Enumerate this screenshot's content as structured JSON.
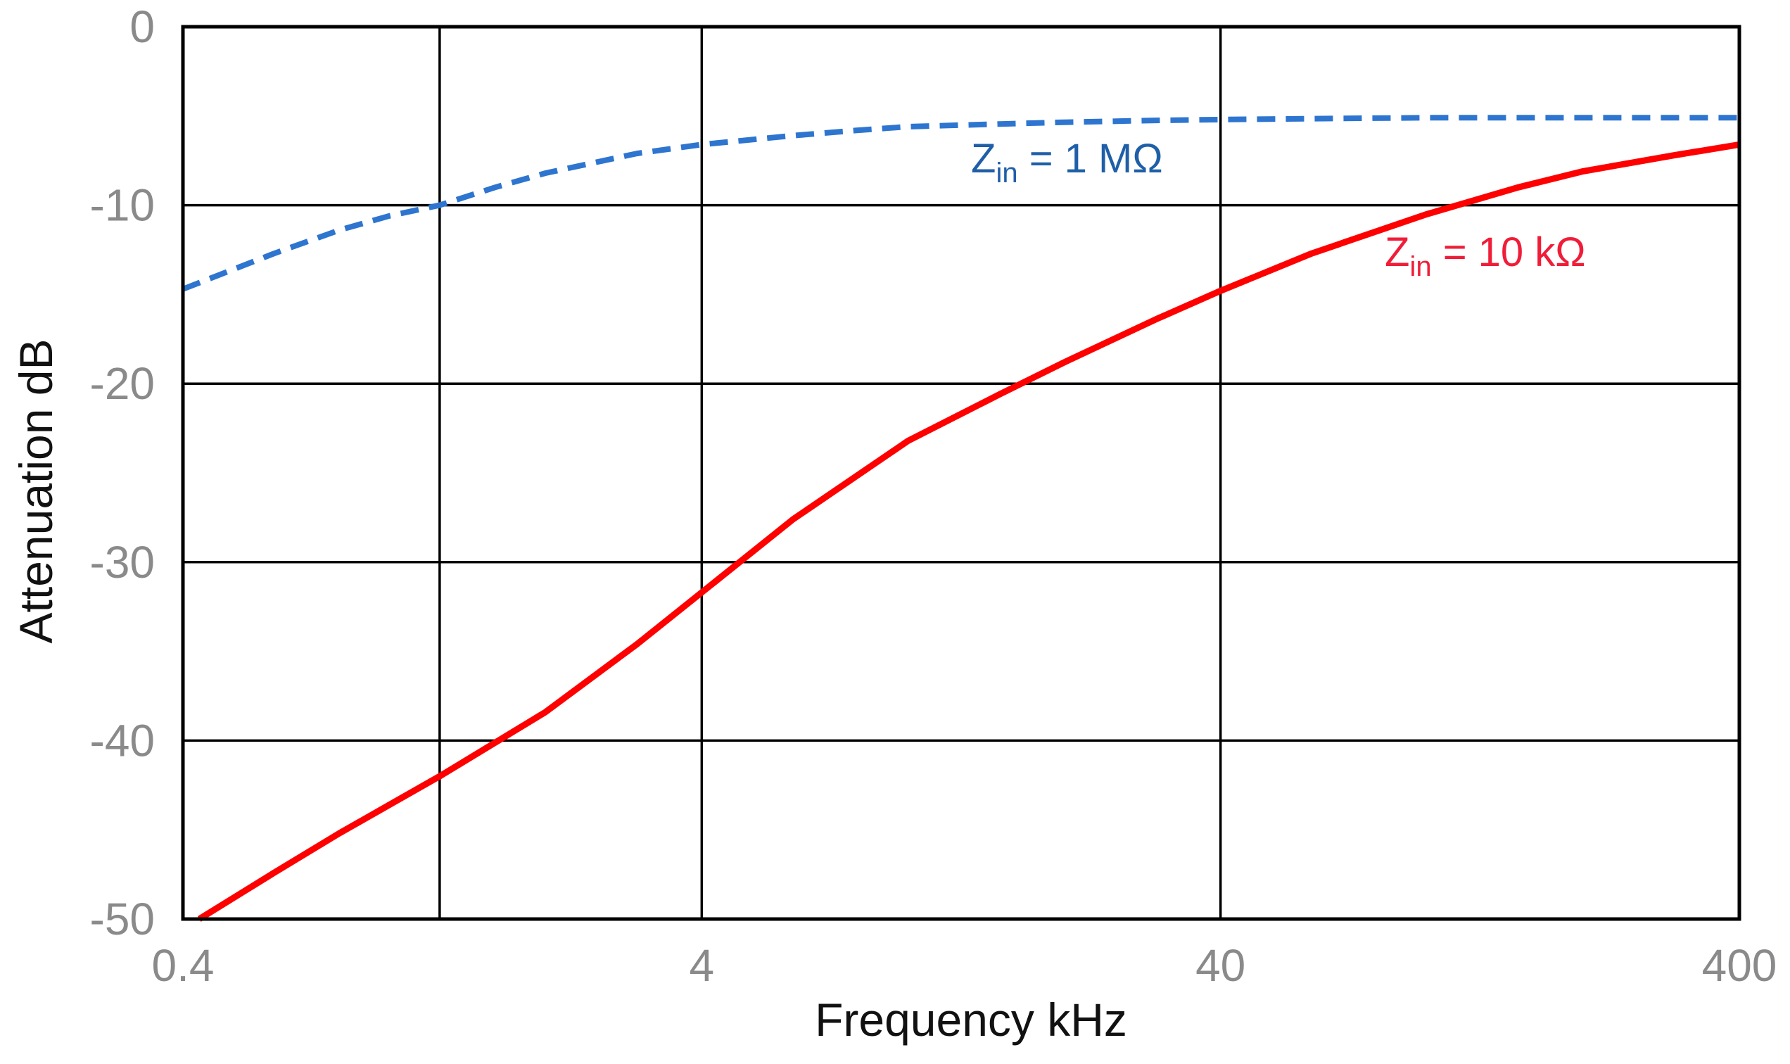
{
  "chart_data": {
    "type": "line",
    "title": "",
    "xlabel": "Frequency  kHz",
    "ylabel": "Attenuation  dB",
    "xscale": "log",
    "xlim": [
      0.4,
      400
    ],
    "ylim": [
      -50,
      0
    ],
    "x_ticks": [
      0.4,
      4,
      40,
      400
    ],
    "x_tick_labels": [
      "0.4",
      "4",
      "40",
      "400"
    ],
    "x_minor_gridlines": [
      1.25
    ],
    "y_ticks": [
      0,
      -10,
      -20,
      -30,
      -40,
      -50
    ],
    "y_tick_labels": [
      "0",
      "-10",
      "-20",
      "-30",
      "-40",
      "-50"
    ],
    "grid": true,
    "series": [
      {
        "name": "Zin = 1 MΩ",
        "label_main": "Z",
        "label_sub": "in",
        "label_rest": " = 1 MΩ",
        "color": "#2e75d0",
        "label_color": "#1f5fa8",
        "style": "dashed",
        "x": [
          0.4,
          0.6,
          0.8,
          1.0,
          1.25,
          1.6,
          2,
          3,
          4,
          6,
          8,
          10,
          15,
          20,
          30,
          40,
          60,
          100,
          200,
          400
        ],
        "y": [
          -14.7,
          -12.7,
          -11.4,
          -10.6,
          -10.0,
          -9.0,
          -8.2,
          -7.1,
          -6.6,
          -6.1,
          -5.8,
          -5.6,
          -5.45,
          -5.35,
          -5.25,
          -5.2,
          -5.15,
          -5.1,
          -5.1,
          -5.1
        ]
      },
      {
        "name": "Zin = 10 kΩ",
        "label_main": "Z",
        "label_sub": "in",
        "label_rest": " = 10 kΩ",
        "color": "#ff0000",
        "label_color": "#f01d38",
        "style": "solid",
        "x": [
          0.43,
          0.6,
          0.8,
          1.0,
          1.25,
          2,
          3,
          4,
          6,
          10,
          15,
          20,
          30,
          40,
          60,
          100,
          150,
          200,
          300,
          400
        ],
        "y": [
          -50,
          -47.4,
          -45.2,
          -43.6,
          -42.0,
          -38.4,
          -34.6,
          -31.7,
          -27.6,
          -23.2,
          -20.6,
          -18.8,
          -16.4,
          -14.8,
          -12.7,
          -10.5,
          -9.0,
          -8.1,
          -7.2,
          -6.6
        ]
      }
    ]
  }
}
